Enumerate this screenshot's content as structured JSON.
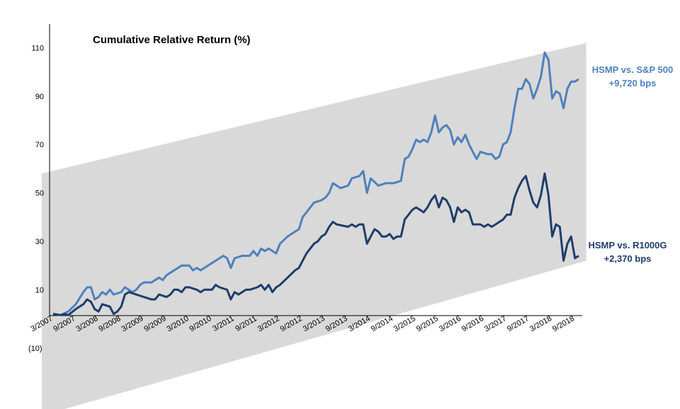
{
  "chart_data": {
    "type": "line",
    "title": "Cumulative Relative Return (%)",
    "xlabel": "",
    "ylabel": "",
    "ylim": [
      -10,
      120
    ],
    "y_ticks": [
      {
        "value": -10,
        "label": "(10)"
      },
      {
        "value": 10,
        "label": "10"
      },
      {
        "value": 30,
        "label": "30"
      },
      {
        "value": 50,
        "label": "50"
      },
      {
        "value": 70,
        "label": "70"
      },
      {
        "value": 90,
        "label": "90"
      },
      {
        "value": 110,
        "label": "110"
      }
    ],
    "x_ticks": [
      "3/2007",
      "9/2007",
      "3/2008",
      "9/2008",
      "3/2009",
      "9/2009",
      "3/2010",
      "9/2010",
      "3/2011",
      "9/2011",
      "3/2012",
      "9/2012",
      "3/2013",
      "9/2013",
      "3/2014",
      "9/2014",
      "3/2015",
      "9/2015",
      "3/2016",
      "9/2016",
      "3/2017",
      "9/2017",
      "3/2018",
      "9/2018"
    ],
    "grid": false,
    "band_color": "#d9d9d9",
    "band": {
      "upper": [
        {
          "x": "12/2006",
          "y": 58
        },
        {
          "x": "12/2018",
          "y": 112
        }
      ],
      "lower": [
        {
          "x": "12/2006",
          "y": -42
        },
        {
          "x": "12/2018",
          "y": 22
        }
      ]
    },
    "series": [
      {
        "name": "HSMP vs. S&P 500",
        "annotation": "+9,720 bps",
        "color": "#4f81bd",
        "points": [
          [
            "3/2007",
            0
          ],
          [
            "5/2007",
            -0.5
          ],
          [
            "7/2007",
            1
          ],
          [
            "9/2007",
            4
          ],
          [
            "11/2007",
            9
          ],
          [
            "12/2007",
            11
          ],
          [
            "1/2008",
            11
          ],
          [
            "2/2008",
            6
          ],
          [
            "3/2008",
            7
          ],
          [
            "4/2008",
            9
          ],
          [
            "5/2008",
            8
          ],
          [
            "6/2008",
            10
          ],
          [
            "7/2008",
            8
          ],
          [
            "9/2008",
            9
          ],
          [
            "10/2008",
            11
          ],
          [
            "12/2008",
            9
          ],
          [
            "1/2009",
            10
          ],
          [
            "2/2009",
            12
          ],
          [
            "3/2009",
            13
          ],
          [
            "5/2009",
            13
          ],
          [
            "7/2009",
            15
          ],
          [
            "8/2009",
            14
          ],
          [
            "9/2009",
            16
          ],
          [
            "11/2009",
            18
          ],
          [
            "12/2009",
            19
          ],
          [
            "1/2010",
            20
          ],
          [
            "3/2010",
            20
          ],
          [
            "4/2010",
            18
          ],
          [
            "5/2010",
            19
          ],
          [
            "6/2010",
            18
          ],
          [
            "7/2010",
            19
          ],
          [
            "9/2010",
            21
          ],
          [
            "10/2010",
            22
          ],
          [
            "12/2010",
            24
          ],
          [
            "1/2011",
            23
          ],
          [
            "2/2011",
            19
          ],
          [
            "3/2011",
            23
          ],
          [
            "5/2011",
            24
          ],
          [
            "7/2011",
            24
          ],
          [
            "8/2011",
            26
          ],
          [
            "9/2011",
            24
          ],
          [
            "10/2011",
            27
          ],
          [
            "11/2011",
            26
          ],
          [
            "12/2011",
            27
          ],
          [
            "2/2012",
            25
          ],
          [
            "3/2012",
            29
          ],
          [
            "5/2012",
            32
          ],
          [
            "7/2012",
            34
          ],
          [
            "8/2012",
            35
          ],
          [
            "9/2012",
            40
          ],
          [
            "10/2012",
            42
          ],
          [
            "12/2012",
            46
          ],
          [
            "2/2013",
            47
          ],
          [
            "3/2013",
            48
          ],
          [
            "4/2013",
            50
          ],
          [
            "5/2013",
            54
          ],
          [
            "7/2013",
            52
          ],
          [
            "9/2013",
            53
          ],
          [
            "10/2013",
            56
          ],
          [
            "12/2013",
            57
          ],
          [
            "1/2014",
            59
          ],
          [
            "2/2014",
            50
          ],
          [
            "3/2014",
            56
          ],
          [
            "5/2014",
            53
          ],
          [
            "7/2014",
            54
          ],
          [
            "8/2014",
            54
          ],
          [
            "9/2014",
            54
          ],
          [
            "11/2014",
            55
          ],
          [
            "12/2014",
            64
          ],
          [
            "1/2015",
            65
          ],
          [
            "2/2015",
            68
          ],
          [
            "3/2015",
            72
          ],
          [
            "4/2015",
            71
          ],
          [
            "5/2015",
            72
          ],
          [
            "6/2015",
            71
          ],
          [
            "7/2015",
            75
          ],
          [
            "8/2015",
            82
          ],
          [
            "9/2015",
            75
          ],
          [
            "10/2015",
            77
          ],
          [
            "11/2015",
            78
          ],
          [
            "12/2015",
            76
          ],
          [
            "1/2016",
            70
          ],
          [
            "2/2016",
            73
          ],
          [
            "3/2016",
            71
          ],
          [
            "4/2016",
            74
          ],
          [
            "5/2016",
            70
          ],
          [
            "6/2016",
            67
          ],
          [
            "7/2016",
            64
          ],
          [
            "8/2016",
            67
          ],
          [
            "10/2016",
            66
          ],
          [
            "11/2016",
            66
          ],
          [
            "12/2016",
            64
          ],
          [
            "1/2017",
            65
          ],
          [
            "2/2017",
            70
          ],
          [
            "3/2017",
            71
          ],
          [
            "4/2017",
            75
          ],
          [
            "5/2017",
            85
          ],
          [
            "6/2017",
            93
          ],
          [
            "7/2017",
            93
          ],
          [
            "8/2017",
            97
          ],
          [
            "9/2017",
            95
          ],
          [
            "10/2017",
            89
          ],
          [
            "11/2017",
            93
          ],
          [
            "12/2017",
            98
          ],
          [
            "1/2018",
            108
          ],
          [
            "2/2018",
            105
          ],
          [
            "3/2018",
            89
          ],
          [
            "4/2018",
            92
          ],
          [
            "5/2018",
            91
          ],
          [
            "6/2018",
            85
          ],
          [
            "7/2018",
            93
          ],
          [
            "8/2018",
            96
          ],
          [
            "9/2018",
            96
          ],
          [
            "10/2018",
            97
          ]
        ]
      },
      {
        "name": "HSMP vs. R1000G",
        "annotation": "+2,370 bps",
        "color": "#1f3d6b",
        "points": [
          [
            "3/2007",
            0
          ],
          [
            "5/2007",
            -0.5
          ],
          [
            "6/2007",
            0
          ],
          [
            "7/2007",
            -0.5
          ],
          [
            "9/2007",
            2
          ],
          [
            "11/2007",
            4
          ],
          [
            "12/2007",
            6
          ],
          [
            "1/2008",
            5
          ],
          [
            "2/2008",
            2
          ],
          [
            "3/2008",
            1
          ],
          [
            "4/2008",
            4
          ],
          [
            "6/2008",
            3
          ],
          [
            "7/2008",
            0
          ],
          [
            "8/2008",
            1
          ],
          [
            "9/2008",
            3
          ],
          [
            "10/2008",
            8
          ],
          [
            "11/2008",
            9
          ],
          [
            "1/2009",
            8
          ],
          [
            "3/2009",
            7
          ],
          [
            "5/2009",
            6
          ],
          [
            "6/2009",
            6
          ],
          [
            "7/2009",
            8
          ],
          [
            "9/2009",
            7
          ],
          [
            "10/2009",
            8
          ],
          [
            "11/2009",
            10
          ],
          [
            "12/2009",
            10
          ],
          [
            "1/2010",
            9
          ],
          [
            "2/2010",
            11
          ],
          [
            "3/2010",
            11
          ],
          [
            "5/2010",
            10
          ],
          [
            "6/2010",
            9
          ],
          [
            "7/2010",
            10
          ],
          [
            "9/2010",
            10
          ],
          [
            "10/2010",
            12
          ],
          [
            "11/2010",
            11
          ],
          [
            "1/2011",
            10
          ],
          [
            "2/2011",
            6
          ],
          [
            "3/2011",
            9
          ],
          [
            "4/2011",
            8
          ],
          [
            "6/2011",
            10
          ],
          [
            "7/2011",
            10
          ],
          [
            "9/2011",
            11
          ],
          [
            "10/2011",
            12
          ],
          [
            "11/2011",
            10
          ],
          [
            "12/2011",
            12
          ],
          [
            "1/2012",
            9
          ],
          [
            "2/2012",
            11
          ],
          [
            "3/2012",
            12
          ],
          [
            "5/2012",
            15
          ],
          [
            "7/2012",
            18
          ],
          [
            "8/2012",
            19
          ],
          [
            "9/2012",
            22
          ],
          [
            "10/2012",
            25
          ],
          [
            "12/2012",
            29
          ],
          [
            "1/2013",
            30
          ],
          [
            "2/2013",
            32
          ],
          [
            "3/2013",
            33
          ],
          [
            "4/2013",
            36
          ],
          [
            "5/2013",
            38
          ],
          [
            "6/2013",
            37
          ],
          [
            "9/2013",
            36
          ],
          [
            "10/2013",
            37
          ],
          [
            "11/2013",
            36
          ],
          [
            "12/2013",
            37
          ],
          [
            "1/2014",
            37
          ],
          [
            "2/2014",
            29
          ],
          [
            "3/2014",
            32
          ],
          [
            "4/2014",
            35
          ],
          [
            "5/2014",
            34
          ],
          [
            "6/2014",
            32
          ],
          [
            "7/2014",
            32
          ],
          [
            "8/2014",
            33
          ],
          [
            "9/2014",
            31
          ],
          [
            "10/2014",
            32
          ],
          [
            "11/2014",
            32
          ],
          [
            "12/2014",
            39
          ],
          [
            "1/2015",
            41
          ],
          [
            "2/2015",
            43
          ],
          [
            "3/2015",
            44
          ],
          [
            "4/2015",
            43
          ],
          [
            "5/2015",
            42
          ],
          [
            "6/2015",
            44
          ],
          [
            "7/2015",
            47
          ],
          [
            "8/2015",
            49
          ],
          [
            "9/2015",
            44
          ],
          [
            "10/2015",
            48
          ],
          [
            "11/2015",
            47
          ],
          [
            "12/2015",
            44
          ],
          [
            "1/2016",
            38
          ],
          [
            "2/2016",
            44
          ],
          [
            "3/2016",
            42
          ],
          [
            "4/2016",
            43
          ],
          [
            "5/2016",
            42
          ],
          [
            "6/2016",
            37
          ],
          [
            "8/2016",
            37
          ],
          [
            "9/2016",
            36
          ],
          [
            "10/2016",
            37
          ],
          [
            "11/2016",
            36
          ],
          [
            "12/2016",
            37
          ],
          [
            "1/2017",
            38
          ],
          [
            "2/2017",
            39
          ],
          [
            "3/2017",
            41
          ],
          [
            "4/2017",
            41
          ],
          [
            "5/2017",
            48
          ],
          [
            "6/2017",
            52
          ],
          [
            "7/2017",
            55
          ],
          [
            "8/2017",
            57
          ],
          [
            "9/2017",
            51
          ],
          [
            "10/2017",
            46
          ],
          [
            "11/2017",
            44
          ],
          [
            "12/2017",
            49
          ],
          [
            "1/2018",
            58
          ],
          [
            "2/2018",
            49
          ],
          [
            "3/2018",
            32
          ],
          [
            "4/2018",
            37
          ],
          [
            "5/2018",
            36
          ],
          [
            "6/2018",
            22
          ],
          [
            "7/2018",
            29
          ],
          [
            "8/2018",
            32
          ],
          [
            "9/2018",
            23
          ],
          [
            "10/2018",
            24
          ]
        ]
      }
    ]
  }
}
